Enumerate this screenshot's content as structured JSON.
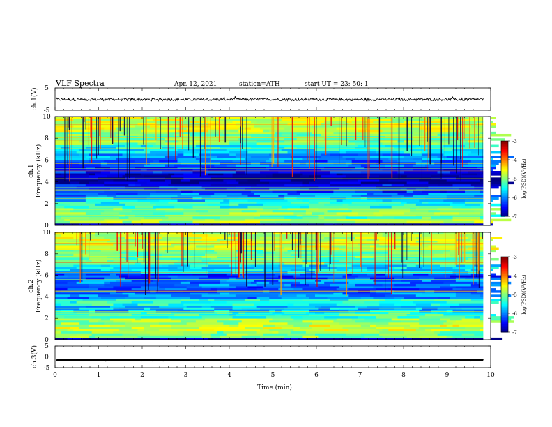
{
  "header": {
    "title": "VLF  Spectra",
    "date": "Apr. 12, 2021",
    "station": "station=ATH",
    "start": "start  UT  =   23: 50: 1"
  },
  "chart_data": {
    "type": "heatmap",
    "x": {
      "label": "Time  (min)",
      "range": [
        0,
        10
      ],
      "ticks": [
        "0",
        "1",
        "2",
        "3",
        "4",
        "5",
        "6",
        "7",
        "8",
        "9",
        "10"
      ],
      "data_extent_min": 9.83
    },
    "panels": [
      {
        "kind": "line",
        "ylabel": "ch.1(V)",
        "ylim": [
          -5,
          5
        ],
        "yticks": [
          "5",
          "-5"
        ],
        "mean_v": -0.2,
        "noise_v": 0.6
      },
      {
        "kind": "spectrogram",
        "ylabel_top": "ch.1",
        "ylabel": "Frequency  (kHz)",
        "ylim": [
          0,
          10
        ],
        "yticks": [
          "10",
          "8",
          "6",
          "4",
          "2",
          "0"
        ],
        "colorbar": {
          "label": "log(PSD)(V²/Hz)",
          "range": [
            -7,
            -3
          ],
          "ticks": [
            "-3",
            "-4",
            "-5",
            "-6",
            "-7"
          ]
        },
        "bands_khz_logpsd": [
          [
            0.0,
            0.2,
            -7.0
          ],
          [
            0.2,
            0.6,
            -4.8
          ],
          [
            0.6,
            1.0,
            -5.2
          ],
          [
            1.0,
            1.6,
            -5.0
          ],
          [
            1.6,
            2.2,
            -5.4
          ],
          [
            2.2,
            2.6,
            -5.7
          ],
          [
            2.6,
            3.0,
            -6.0
          ],
          [
            3.0,
            3.4,
            -6.3
          ],
          [
            3.4,
            3.8,
            -6.5
          ],
          [
            3.8,
            4.8,
            -6.85
          ],
          [
            4.8,
            5.4,
            -6.4
          ],
          [
            5.4,
            6.0,
            -6.1
          ],
          [
            6.0,
            6.6,
            -5.9
          ],
          [
            6.6,
            7.4,
            -5.5
          ],
          [
            7.4,
            8.6,
            -5.0
          ],
          [
            8.6,
            10.0,
            -4.7
          ]
        ]
      },
      {
        "kind": "spectrogram",
        "ylabel_top": "ch.2",
        "ylabel": "Frequency  (kHz)",
        "ylim": [
          0,
          10
        ],
        "yticks": [
          "10",
          "8",
          "6",
          "4",
          "2",
          "0"
        ],
        "colorbar": {
          "label": "log(PSD)(V²/Hz)",
          "range": [
            -7,
            -3
          ],
          "ticks": [
            "-3",
            "-4",
            "-5",
            "-6",
            "-7"
          ]
        },
        "bands_khz_logpsd": [
          [
            0.0,
            0.2,
            -6.9
          ],
          [
            0.2,
            0.8,
            -5.0
          ],
          [
            0.8,
            1.4,
            -4.7
          ],
          [
            1.4,
            2.0,
            -4.9
          ],
          [
            2.0,
            2.6,
            -5.3
          ],
          [
            2.6,
            3.2,
            -5.8
          ],
          [
            3.2,
            3.8,
            -5.4
          ],
          [
            3.8,
            4.4,
            -6.0
          ],
          [
            4.4,
            5.0,
            -6.2
          ],
          [
            5.0,
            5.6,
            -6.0
          ],
          [
            5.6,
            6.2,
            -6.3
          ],
          [
            6.2,
            7.0,
            -5.6
          ],
          [
            7.0,
            8.4,
            -5.1
          ],
          [
            8.4,
            10.0,
            -4.7
          ]
        ]
      },
      {
        "kind": "line",
        "ylabel": "ch.3(V)",
        "ylim": [
          -5,
          5
        ],
        "yticks": [
          "5",
          "0",
          "-5"
        ],
        "mean_v": -1.5,
        "noise_v": 0.1
      }
    ]
  }
}
